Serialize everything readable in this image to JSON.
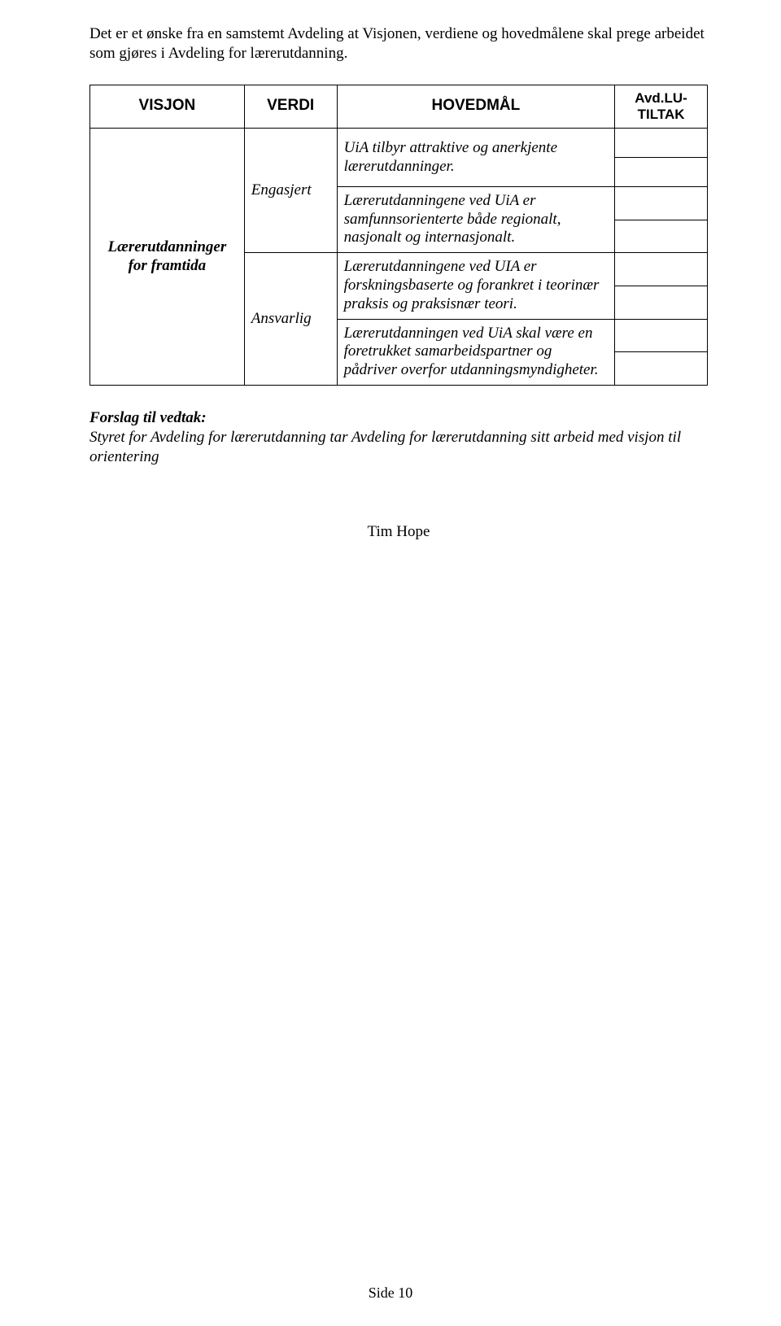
{
  "intro_text": "Det er et ønske fra en samstemt Avdeling at Visjonen, verdiene og hovedmålene skal prege arbeidet som gjøres i Avdeling for lærerutdanning.",
  "table": {
    "headers": {
      "col1": "VISJON",
      "col2": "VERDI",
      "col3": "HOVEDMÅL",
      "col4": "Avd.LU-TILTAK"
    },
    "row_label": "Lærerutdanninger for framtida",
    "verdi_top": "Engasjert",
    "verdi_bottom": "Ansvarlig",
    "goals": [
      "UiA tilbyr attraktive og anerkjente lærerutdanninger.",
      "Lærerutdanningene ved UiA er samfunnsorienterte både regionalt, nasjonalt og internasjonalt.",
      "Lærerutdanningene ved UIA er forskningsbaserte og forankret i teorinær praksis og praksisnær teori.",
      "Lærerutdanningen ved UiA skal være en foretrukket samarbeidspartner og pådriver overfor utdanningsmyndigheter."
    ]
  },
  "forslag": {
    "heading": "Forslag til vedtak:",
    "body": "Styret for Avdeling for lærerutdanning tar Avdeling for lærerutdanning sitt arbeid med visjon til orientering"
  },
  "signature": "Tim Hope",
  "footer": "Side 10"
}
